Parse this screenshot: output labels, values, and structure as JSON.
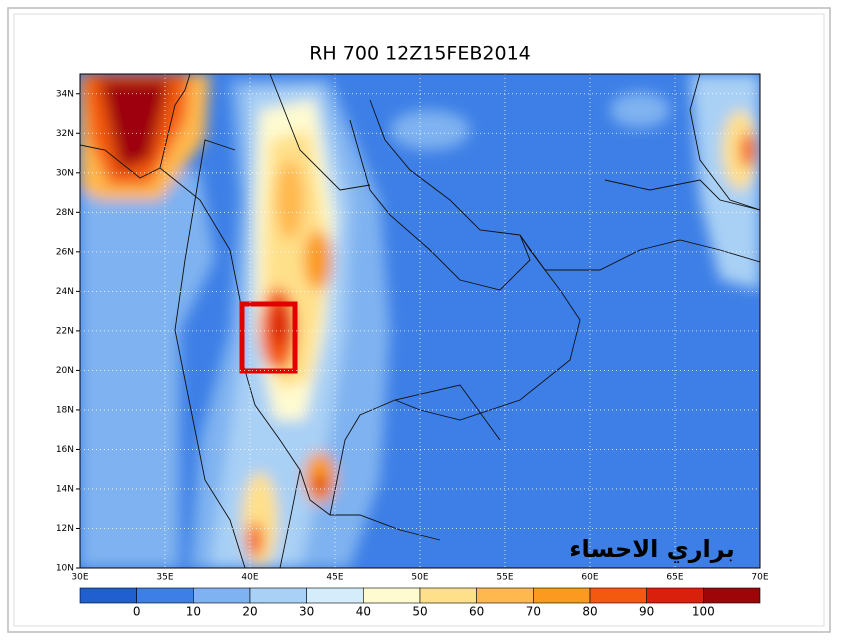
{
  "map": {
    "title": "RH 700  12Z15FEB2014",
    "x_ticks": [
      "30E",
      "35E",
      "40E",
      "45E",
      "50E",
      "55E",
      "60E",
      "65E",
      "70E"
    ],
    "y_ticks": [
      "10N",
      "12N",
      "14N",
      "16N",
      "18N",
      "20N",
      "22N",
      "24N",
      "26N",
      "28N",
      "30N",
      "32N",
      "34N"
    ],
    "watermark": "براري الاحساء"
  },
  "colorbar": {
    "colors": [
      "#1f5fcf",
      "#3d7fe6",
      "#7fb2f0",
      "#a9d0f5",
      "#d5ecfb",
      "#fffbd0",
      "#ffe08a",
      "#ffb84d",
      "#fb9a1e",
      "#f45a0f",
      "#d8200c",
      "#9e0508"
    ],
    "labels": [
      "0",
      "10",
      "20",
      "30",
      "40",
      "50",
      "60",
      "70",
      "80",
      "90",
      "100"
    ]
  }
}
